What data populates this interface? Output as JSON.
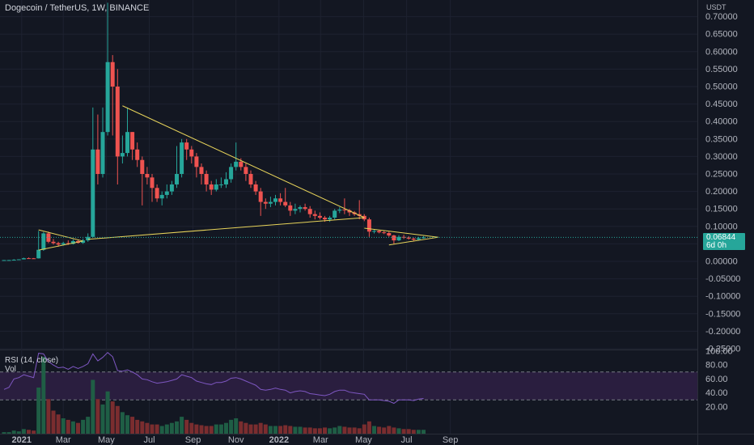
{
  "header": {
    "title": "Dogecoin / TetherUS, 1W, BINANCE"
  },
  "price_scale": {
    "unit": "USDT"
  },
  "last_price": {
    "value": "0.06844",
    "countdown": "6d 0h"
  },
  "indicator": {
    "name": "RSI (14, close)",
    "volume_label": "Vol"
  },
  "colors": {
    "background": "#131722",
    "up": "#26a69a",
    "down": "#ef5350",
    "trendline": "#e8d45a",
    "rsi_line": "#7e57c2",
    "rsi_band": "#2a1e3f",
    "grid": "#1e2230"
  },
  "chart_data": [
    {
      "type": "candlestick",
      "title": "Dogecoin / TetherUS, 1W, BINANCE",
      "ylim": [
        -0.25,
        0.75
      ],
      "y_ticks": [
        "0.70000",
        "0.65000",
        "0.60000",
        "0.55000",
        "0.50000",
        "0.45000",
        "0.40000",
        "0.35000",
        "0.30000",
        "0.25000",
        "0.20000",
        "0.15000",
        "0.10000",
        "0.05000",
        "0.00000",
        "-0.05000",
        "-0.10000",
        "-0.15000",
        "-0.20000",
        "-0.25000"
      ],
      "x_ticks": [
        "2021",
        "Mar",
        "May",
        "Jul",
        "Sep",
        "Nov",
        "2022",
        "Mar",
        "May",
        "Jul",
        "Sep"
      ],
      "candles": [
        {
          "week": "2020-12-07",
          "o": 0.0035,
          "h": 0.0038,
          "l": 0.0034,
          "c": 0.0036
        },
        {
          "week": "2020-12-14",
          "o": 0.0036,
          "h": 0.0039,
          "l": 0.0035,
          "c": 0.0037
        },
        {
          "week": "2020-12-21",
          "o": 0.0037,
          "h": 0.0062,
          "l": 0.0036,
          "c": 0.0046
        },
        {
          "week": "2020-12-28",
          "o": 0.0046,
          "h": 0.006,
          "l": 0.0044,
          "c": 0.0057
        },
        {
          "week": "2021-01-04",
          "o": 0.0057,
          "h": 0.0105,
          "l": 0.0055,
          "c": 0.009
        },
        {
          "week": "2021-01-11",
          "o": 0.009,
          "h": 0.011,
          "l": 0.008,
          "c": 0.0087
        },
        {
          "week": "2021-01-18",
          "o": 0.0087,
          "h": 0.0095,
          "l": 0.0075,
          "c": 0.0085
        },
        {
          "week": "2021-01-25",
          "o": 0.0085,
          "h": 0.087,
          "l": 0.008,
          "c": 0.033
        },
        {
          "week": "2021-02-01",
          "o": 0.033,
          "h": 0.084,
          "l": 0.03,
          "c": 0.08
        },
        {
          "week": "2021-02-08",
          "o": 0.08,
          "h": 0.085,
          "l": 0.052,
          "c": 0.056
        },
        {
          "week": "2021-02-15",
          "o": 0.056,
          "h": 0.064,
          "l": 0.048,
          "c": 0.052
        },
        {
          "week": "2021-02-22",
          "o": 0.052,
          "h": 0.056,
          "l": 0.042,
          "c": 0.048
        },
        {
          "week": "2021-03-01",
          "o": 0.048,
          "h": 0.056,
          "l": 0.045,
          "c": 0.052
        },
        {
          "week": "2021-03-08",
          "o": 0.052,
          "h": 0.06,
          "l": 0.047,
          "c": 0.05
        },
        {
          "week": "2021-03-15",
          "o": 0.05,
          "h": 0.063,
          "l": 0.048,
          "c": 0.058
        },
        {
          "week": "2021-03-22",
          "o": 0.058,
          "h": 0.062,
          "l": 0.051,
          "c": 0.053
        },
        {
          "week": "2021-03-29",
          "o": 0.053,
          "h": 0.065,
          "l": 0.05,
          "c": 0.06
        },
        {
          "week": "2021-04-05",
          "o": 0.06,
          "h": 0.08,
          "l": 0.056,
          "c": 0.07
        },
        {
          "week": "2021-04-12",
          "o": 0.07,
          "h": 0.44,
          "l": 0.068,
          "c": 0.32
        },
        {
          "week": "2021-04-19",
          "o": 0.32,
          "h": 0.42,
          "l": 0.22,
          "c": 0.25
        },
        {
          "week": "2021-04-26",
          "o": 0.25,
          "h": 0.44,
          "l": 0.24,
          "c": 0.37
        },
        {
          "week": "2021-05-03",
          "o": 0.37,
          "h": 0.74,
          "l": 0.36,
          "c": 0.57
        },
        {
          "week": "2021-05-10",
          "o": 0.57,
          "h": 0.59,
          "l": 0.36,
          "c": 0.5
        },
        {
          "week": "2021-05-17",
          "o": 0.5,
          "h": 0.55,
          "l": 0.22,
          "c": 0.3
        },
        {
          "week": "2021-05-24",
          "o": 0.3,
          "h": 0.36,
          "l": 0.28,
          "c": 0.31
        },
        {
          "week": "2021-05-31",
          "o": 0.31,
          "h": 0.44,
          "l": 0.3,
          "c": 0.37
        },
        {
          "week": "2021-06-07",
          "o": 0.37,
          "h": 0.37,
          "l": 0.29,
          "c": 0.32
        },
        {
          "week": "2021-06-14",
          "o": 0.32,
          "h": 0.34,
          "l": 0.27,
          "c": 0.29
        },
        {
          "week": "2021-06-21",
          "o": 0.29,
          "h": 0.3,
          "l": 0.16,
          "c": 0.25
        },
        {
          "week": "2021-06-28",
          "o": 0.25,
          "h": 0.27,
          "l": 0.22,
          "c": 0.24
        },
        {
          "week": "2021-07-05",
          "o": 0.24,
          "h": 0.25,
          "l": 0.17,
          "c": 0.21
        },
        {
          "week": "2021-07-12",
          "o": 0.21,
          "h": 0.22,
          "l": 0.17,
          "c": 0.18
        },
        {
          "week": "2021-07-19",
          "o": 0.18,
          "h": 0.2,
          "l": 0.16,
          "c": 0.19
        },
        {
          "week": "2021-07-26",
          "o": 0.19,
          "h": 0.22,
          "l": 0.18,
          "c": 0.2
        },
        {
          "week": "2021-08-02",
          "o": 0.2,
          "h": 0.23,
          "l": 0.19,
          "c": 0.22
        },
        {
          "week": "2021-08-09",
          "o": 0.22,
          "h": 0.33,
          "l": 0.21,
          "c": 0.25
        },
        {
          "week": "2021-08-16",
          "o": 0.25,
          "h": 0.35,
          "l": 0.24,
          "c": 0.34
        },
        {
          "week": "2021-08-23",
          "o": 0.34,
          "h": 0.35,
          "l": 0.29,
          "c": 0.32
        },
        {
          "week": "2021-08-30",
          "o": 0.32,
          "h": 0.33,
          "l": 0.28,
          "c": 0.3
        },
        {
          "week": "2021-09-06",
          "o": 0.3,
          "h": 0.31,
          "l": 0.24,
          "c": 0.27
        },
        {
          "week": "2021-09-13",
          "o": 0.27,
          "h": 0.28,
          "l": 0.22,
          "c": 0.25
        },
        {
          "week": "2021-09-20",
          "o": 0.25,
          "h": 0.26,
          "l": 0.2,
          "c": 0.22
        },
        {
          "week": "2021-09-27",
          "o": 0.22,
          "h": 0.23,
          "l": 0.19,
          "c": 0.205
        },
        {
          "week": "2021-10-04",
          "o": 0.205,
          "h": 0.235,
          "l": 0.2,
          "c": 0.22
        },
        {
          "week": "2021-10-11",
          "o": 0.22,
          "h": 0.24,
          "l": 0.21,
          "c": 0.22
        },
        {
          "week": "2021-10-18",
          "o": 0.22,
          "h": 0.255,
          "l": 0.21,
          "c": 0.235
        },
        {
          "week": "2021-10-25",
          "o": 0.235,
          "h": 0.28,
          "l": 0.225,
          "c": 0.27
        },
        {
          "week": "2021-11-01",
          "o": 0.27,
          "h": 0.34,
          "l": 0.26,
          "c": 0.285
        },
        {
          "week": "2021-11-08",
          "o": 0.285,
          "h": 0.295,
          "l": 0.26,
          "c": 0.27
        },
        {
          "week": "2021-11-15",
          "o": 0.27,
          "h": 0.28,
          "l": 0.23,
          "c": 0.25
        },
        {
          "week": "2021-11-22",
          "o": 0.25,
          "h": 0.26,
          "l": 0.21,
          "c": 0.22
        },
        {
          "week": "2021-11-29",
          "o": 0.22,
          "h": 0.23,
          "l": 0.19,
          "c": 0.2
        },
        {
          "week": "2021-12-06",
          "o": 0.2,
          "h": 0.21,
          "l": 0.13,
          "c": 0.17
        },
        {
          "week": "2021-12-13",
          "o": 0.17,
          "h": 0.18,
          "l": 0.15,
          "c": 0.165
        },
        {
          "week": "2021-12-20",
          "o": 0.165,
          "h": 0.185,
          "l": 0.155,
          "c": 0.17
        },
        {
          "week": "2021-12-27",
          "o": 0.17,
          "h": 0.19,
          "l": 0.16,
          "c": 0.18
        },
        {
          "week": "2022-01-03",
          "o": 0.18,
          "h": 0.195,
          "l": 0.16,
          "c": 0.17
        },
        {
          "week": "2022-01-10",
          "o": 0.17,
          "h": 0.21,
          "l": 0.155,
          "c": 0.16
        },
        {
          "week": "2022-01-17",
          "o": 0.16,
          "h": 0.17,
          "l": 0.13,
          "c": 0.145
        },
        {
          "week": "2022-01-24",
          "o": 0.145,
          "h": 0.165,
          "l": 0.135,
          "c": 0.15
        },
        {
          "week": "2022-01-31",
          "o": 0.15,
          "h": 0.16,
          "l": 0.14,
          "c": 0.155
        },
        {
          "week": "2022-02-07",
          "o": 0.155,
          "h": 0.165,
          "l": 0.145,
          "c": 0.15
        },
        {
          "week": "2022-02-14",
          "o": 0.15,
          "h": 0.158,
          "l": 0.125,
          "c": 0.135
        },
        {
          "week": "2022-02-21",
          "o": 0.135,
          "h": 0.145,
          "l": 0.12,
          "c": 0.13
        },
        {
          "week": "2022-02-28",
          "o": 0.13,
          "h": 0.14,
          "l": 0.12,
          "c": 0.125
        },
        {
          "week": "2022-03-07",
          "o": 0.125,
          "h": 0.13,
          "l": 0.113,
          "c": 0.12
        },
        {
          "week": "2022-03-14",
          "o": 0.12,
          "h": 0.13,
          "l": 0.113,
          "c": 0.125
        },
        {
          "week": "2022-03-21",
          "o": 0.125,
          "h": 0.15,
          "l": 0.12,
          "c": 0.145
        },
        {
          "week": "2022-03-28",
          "o": 0.145,
          "h": 0.155,
          "l": 0.138,
          "c": 0.148
        },
        {
          "week": "2022-04-04",
          "o": 0.148,
          "h": 0.18,
          "l": 0.135,
          "c": 0.146
        },
        {
          "week": "2022-04-11",
          "o": 0.146,
          "h": 0.15,
          "l": 0.13,
          "c": 0.14
        },
        {
          "week": "2022-04-18",
          "o": 0.14,
          "h": 0.144,
          "l": 0.13,
          "c": 0.135
        },
        {
          "week": "2022-04-25",
          "o": 0.135,
          "h": 0.175,
          "l": 0.12,
          "c": 0.13
        },
        {
          "week": "2022-05-02",
          "o": 0.13,
          "h": 0.135,
          "l": 0.115,
          "c": 0.12
        },
        {
          "week": "2022-05-09",
          "o": 0.12,
          "h": 0.125,
          "l": 0.07,
          "c": 0.085
        },
        {
          "week": "2022-05-16",
          "o": 0.085,
          "h": 0.09,
          "l": 0.08,
          "c": 0.087
        },
        {
          "week": "2022-05-23",
          "o": 0.087,
          "h": 0.09,
          "l": 0.08,
          "c": 0.083
        },
        {
          "week": "2022-05-30",
          "o": 0.083,
          "h": 0.088,
          "l": 0.078,
          "c": 0.081
        },
        {
          "week": "2022-06-06",
          "o": 0.081,
          "h": 0.085,
          "l": 0.07,
          "c": 0.074
        },
        {
          "week": "2022-06-13",
          "o": 0.074,
          "h": 0.076,
          "l": 0.05,
          "c": 0.06
        },
        {
          "week": "2022-06-20",
          "o": 0.06,
          "h": 0.075,
          "l": 0.058,
          "c": 0.07
        },
        {
          "week": "2022-06-27",
          "o": 0.07,
          "h": 0.076,
          "l": 0.064,
          "c": 0.068
        },
        {
          "week": "2022-07-04",
          "o": 0.068,
          "h": 0.072,
          "l": 0.062,
          "c": 0.065
        },
        {
          "week": "2022-07-11",
          "o": 0.065,
          "h": 0.068,
          "l": 0.058,
          "c": 0.062
        },
        {
          "week": "2022-07-18",
          "o": 0.062,
          "h": 0.07,
          "l": 0.06,
          "c": 0.066
        },
        {
          "week": "2022-07-25",
          "o": 0.066,
          "h": 0.072,
          "l": 0.065,
          "c": 0.0684
        }
      ],
      "trendlines": [
        {
          "from": {
            "week": "2021-01-25",
            "price": 0.09
          },
          "to": {
            "week": "2021-03-29",
            "price": 0.058
          }
        },
        {
          "from": {
            "week": "2021-01-25",
            "price": 0.032
          },
          "to": {
            "week": "2021-03-29",
            "price": 0.058
          }
        },
        {
          "from": {
            "week": "2021-04-05",
            "price": 0.063
          },
          "to": {
            "week": "2022-05-02",
            "price": 0.125
          }
        },
        {
          "from": {
            "week": "2021-05-24",
            "price": 0.445
          },
          "to": {
            "week": "2022-05-02",
            "price": 0.125
          }
        },
        {
          "from": {
            "week": "2022-05-02",
            "price": 0.095
          },
          "to": {
            "week": "2022-08-15",
            "price": 0.069
          }
        },
        {
          "from": {
            "week": "2022-06-06",
            "price": 0.047
          },
          "to": {
            "week": "2022-08-15",
            "price": 0.069
          }
        }
      ],
      "last_price_line": 0.06844
    },
    {
      "type": "line",
      "title": "RSI (14, close)",
      "ylim": [
        0,
        100
      ],
      "y_ticks": [
        "100.00",
        "80.00",
        "60.00",
        "40.00",
        "20.00"
      ],
      "bands": [
        30,
        70
      ],
      "values": [
        45,
        48,
        60,
        62,
        66,
        64,
        62,
        97,
        96,
        85,
        80,
        76,
        77,
        74,
        78,
        75,
        78,
        82,
        96,
        86,
        91,
        98,
        92,
        72,
        71,
        73,
        70,
        66,
        60,
        59,
        56,
        54,
        55,
        56,
        58,
        60,
        66,
        64,
        62,
        57,
        55,
        53,
        52,
        55,
        55,
        57,
        61,
        62,
        60,
        57,
        54,
        51,
        45,
        44,
        45,
        47,
        45,
        44,
        40,
        42,
        43,
        42,
        39,
        38,
        37,
        36,
        38,
        42,
        44,
        44,
        41,
        40,
        39,
        38,
        30,
        30,
        30,
        29,
        28,
        25,
        30,
        30,
        30,
        29,
        31,
        32
      ]
    },
    {
      "type": "bar",
      "title": "Vol",
      "values": [
        2,
        2,
        4,
        3,
        6,
        5,
        4,
        60,
        100,
        45,
        30,
        25,
        20,
        18,
        16,
        14,
        18,
        22,
        70,
        45,
        38,
        55,
        42,
        36,
        28,
        24,
        22,
        18,
        16,
        14,
        12,
        12,
        10,
        12,
        14,
        16,
        22,
        18,
        14,
        12,
        11,
        10,
        10,
        12,
        12,
        14,
        18,
        20,
        16,
        14,
        12,
        12,
        14,
        12,
        10,
        10,
        10,
        11,
        10,
        9,
        9,
        8,
        8,
        7,
        7,
        8,
        7,
        8,
        10,
        9,
        8,
        8,
        7,
        12,
        16,
        10,
        9,
        8,
        10,
        8,
        7,
        6,
        6,
        5,
        5,
        5
      ]
    }
  ]
}
